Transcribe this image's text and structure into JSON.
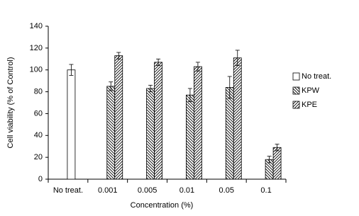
{
  "chart_data": {
    "type": "bar",
    "x_label": "Concentration  (%)",
    "y_label": "Cell viability (% of Control)",
    "categories": [
      "No treat.",
      "0.001",
      "0.005",
      "0.01",
      "0.05",
      "0.1"
    ],
    "series": [
      {
        "name": "No treat.",
        "color": "#000000",
        "hatch": "none",
        "values": [
          100,
          null,
          null,
          null,
          null,
          null
        ],
        "errors": [
          5,
          null,
          null,
          null,
          null,
          null
        ]
      },
      {
        "name": "KPW",
        "color": "#000000",
        "hatch": "back",
        "values": [
          null,
          85,
          83,
          77,
          84,
          18
        ],
        "errors": [
          null,
          4,
          3,
          6,
          10,
          3
        ]
      },
      {
        "name": "KPE",
        "color": "#000000",
        "hatch": "forward",
        "values": [
          null,
          113,
          107,
          103,
          111,
          29
        ],
        "errors": [
          null,
          3,
          3,
          4,
          7,
          3
        ]
      }
    ],
    "ylim": [
      0,
      140
    ],
    "yticks": [
      0,
      20,
      40,
      60,
      80,
      100,
      120,
      140
    ],
    "grid": false,
    "legend": "right"
  }
}
